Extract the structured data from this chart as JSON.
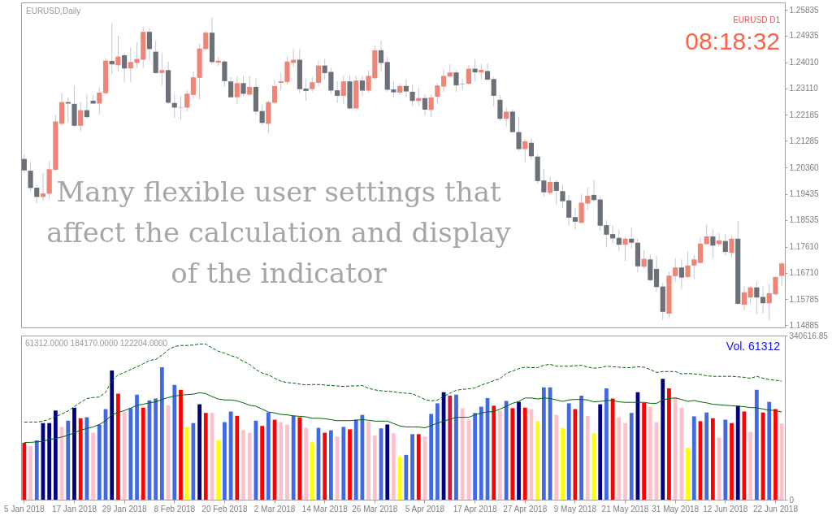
{
  "chart_data": [
    {
      "type": "candlestick",
      "title": "EURUSD,Daily",
      "annotations": [
        "EURUSD D1",
        "08:18:32",
        "Many flexible user settings that affect the calculation and display of the indicator"
      ],
      "categories": [
        null,
        null,
        null,
        null,
        null,
        null,
        null,
        null,
        null,
        null,
        null,
        null,
        null,
        null,
        null,
        null,
        null,
        null,
        null,
        null,
        null,
        null,
        null,
        null,
        null,
        null,
        null,
        null,
        null,
        null,
        null,
        null,
        null,
        null,
        null,
        null,
        null,
        null,
        null,
        null,
        null,
        null,
        null,
        null,
        null,
        null,
        null,
        null,
        null,
        null,
        null,
        null,
        null,
        null,
        null,
        null,
        null,
        null,
        null,
        null,
        null,
        null,
        null,
        null,
        null,
        null,
        null,
        null,
        null,
        null,
        null,
        null,
        null,
        null,
        null,
        null,
        null,
        null,
        null,
        null,
        null,
        null,
        null,
        null,
        null,
        null,
        null,
        null,
        null,
        null,
        null,
        null,
        null,
        null,
        null,
        null,
        null,
        null,
        null,
        null,
        null,
        null,
        null,
        null,
        null,
        null,
        null,
        null,
        null,
        null,
        null,
        null,
        null,
        null,
        null,
        null,
        null,
        null,
        null,
        null,
        null,
        null
      ],
      "ohlc": [
        [
          1.2066,
          1.2082,
          1.2017,
          1.2026
        ],
        [
          1.2025,
          1.2052,
          1.1954,
          1.1965
        ],
        [
          1.1966,
          1.1976,
          1.1911,
          1.1934
        ],
        [
          1.1934,
          1.2017,
          1.192,
          1.1946
        ],
        [
          1.1945,
          1.2059,
          1.1927,
          1.203
        ],
        [
          1.2028,
          1.2219,
          1.2026,
          1.2196
        ],
        [
          1.2188,
          1.2296,
          1.2183,
          1.2263
        ],
        [
          1.2263,
          1.228,
          1.2191,
          1.2258
        ],
        [
          1.2257,
          1.232,
          1.2176,
          1.2181
        ],
        [
          1.2181,
          1.2263,
          1.2162,
          1.2235
        ],
        [
          1.2235,
          1.2292,
          1.2207,
          1.2211
        ],
        [
          1.2268,
          1.2287,
          1.2256,
          1.2258
        ],
        [
          1.2258,
          1.2313,
          1.222,
          1.2296
        ],
        [
          1.2294,
          1.2416,
          1.229,
          1.2407
        ],
        [
          1.2406,
          1.2537,
          1.2361,
          1.2394
        ],
        [
          1.2391,
          1.2493,
          1.2368,
          1.2421
        ],
        [
          1.2426,
          1.2433,
          1.2333,
          1.238
        ],
        [
          1.238,
          1.2453,
          1.2333,
          1.2402
        ],
        [
          1.2399,
          1.2472,
          1.2382,
          1.2413
        ],
        [
          1.241,
          1.2524,
          1.2382,
          1.2507
        ],
        [
          1.2507,
          1.2518,
          1.2407,
          1.2447
        ],
        [
          1.2438,
          1.2475,
          1.2361,
          1.2364
        ],
        [
          1.2364,
          1.2435,
          1.2322,
          1.2374
        ],
        [
          1.2374,
          1.2403,
          1.2257,
          1.2261
        ],
        [
          1.226,
          1.2292,
          1.2208,
          1.2244
        ],
        [
          1.2244,
          1.2285,
          1.2202,
          1.2246
        ],
        [
          1.2244,
          1.2304,
          1.223,
          1.2292
        ],
        [
          1.2288,
          1.237,
          1.2276,
          1.2349
        ],
        [
          1.2347,
          1.2465,
          1.2271,
          1.2449
        ],
        [
          1.2447,
          1.2509,
          1.2442,
          1.2504
        ],
        [
          1.2504,
          1.2557,
          1.2394,
          1.2402
        ],
        [
          1.24,
          1.2419,
          1.2389,
          1.2407
        ],
        [
          1.2404,
          1.2407,
          1.2316,
          1.2336
        ],
        [
          1.2335,
          1.235,
          1.2278,
          1.228
        ],
        [
          1.228,
          1.2352,
          1.2257,
          1.2329
        ],
        [
          1.2329,
          1.2354,
          1.2283,
          1.2292
        ],
        [
          1.2289,
          1.2354,
          1.2285,
          1.2316
        ],
        [
          1.2316,
          1.2345,
          1.2219,
          1.223
        ],
        [
          1.2232,
          1.2254,
          1.2183,
          1.2191
        ],
        [
          1.2188,
          1.2268,
          1.2154,
          1.2263
        ],
        [
          1.2261,
          1.2341,
          1.2257,
          1.2319
        ],
        [
          1.233,
          1.2364,
          1.2304,
          1.2335
        ],
        [
          1.2333,
          1.2422,
          1.2324,
          1.2404
        ],
        [
          1.2399,
          1.2447,
          1.2384,
          1.241
        ],
        [
          1.241,
          1.2447,
          1.2294,
          1.2308
        ],
        [
          1.231,
          1.2345,
          1.2268,
          1.2302
        ],
        [
          1.2308,
          1.235,
          1.2299,
          1.2332
        ],
        [
          1.233,
          1.2407,
          1.2318,
          1.239
        ],
        [
          1.239,
          1.2413,
          1.2341,
          1.2364
        ],
        [
          1.2368,
          1.2382,
          1.2292,
          1.2303
        ],
        [
          1.2304,
          1.2336,
          1.2259,
          1.2285
        ],
        [
          1.2285,
          1.2356,
          1.2257,
          1.2335
        ],
        [
          1.2335,
          1.2356,
          1.2236,
          1.2241
        ],
        [
          1.2241,
          1.2354,
          1.2239,
          1.2338
        ],
        [
          1.2338,
          1.2354,
          1.2283,
          1.2303
        ],
        [
          1.2303,
          1.2373,
          1.2296,
          1.2354
        ],
        [
          1.2346,
          1.246,
          1.2341,
          1.2443
        ],
        [
          1.2443,
          1.2476,
          1.237,
          1.2399
        ],
        [
          1.2402,
          1.242,
          1.2299,
          1.2306
        ],
        [
          1.2307,
          1.2335,
          1.228,
          1.2297
        ],
        [
          1.2296,
          1.2328,
          1.2288,
          1.2319
        ],
        [
          1.2319,
          1.2343,
          1.2278,
          1.23
        ],
        [
          1.2299,
          1.2324,
          1.225,
          1.2267
        ],
        [
          1.2267,
          1.2313,
          1.2248,
          1.2277
        ],
        [
          1.2277,
          1.229,
          1.2216,
          1.2237
        ],
        [
          1.2236,
          1.229,
          1.2211,
          1.2279
        ],
        [
          1.2282,
          1.2329,
          1.2259,
          1.2321
        ],
        [
          1.2317,
          1.2375,
          1.2299,
          1.2354
        ],
        [
          1.2352,
          1.2395,
          1.235,
          1.2366
        ],
        [
          1.2366,
          1.2375,
          1.2299,
          1.2321
        ],
        [
          1.2325,
          1.2344,
          1.2306,
          1.2327
        ],
        [
          1.2327,
          1.2392,
          1.2324,
          1.2379
        ],
        [
          1.2379,
          1.2413,
          1.2336,
          1.2366
        ],
        [
          1.2366,
          1.2395,
          1.2341,
          1.2375
        ],
        [
          1.2371,
          1.2397,
          1.2339,
          1.2341
        ],
        [
          1.2343,
          1.235,
          1.2248,
          1.2285
        ],
        [
          1.2271,
          1.2287,
          1.2198,
          1.2205
        ],
        [
          1.2205,
          1.2244,
          1.2179,
          1.223
        ],
        [
          1.223,
          1.2237,
          1.2156,
          1.2159
        ],
        [
          1.2159,
          1.2211,
          1.2093,
          1.21
        ],
        [
          1.21,
          1.2133,
          1.2054,
          1.2127
        ],
        [
          1.2122,
          1.2137,
          1.2063,
          1.2075
        ],
        [
          1.2074,
          1.2082,
          1.198,
          1.1989
        ],
        [
          1.1991,
          1.203,
          1.1934,
          1.195
        ],
        [
          1.1948,
          1.2004,
          1.1943,
          1.1986
        ],
        [
          1.1986,
          1.1992,
          1.1908,
          1.1955
        ],
        [
          1.1954,
          1.1977,
          1.1894,
          1.1919
        ],
        [
          1.1922,
          1.194,
          1.1834,
          1.1862
        ],
        [
          1.1864,
          1.1897,
          1.1821,
          1.1848
        ],
        [
          1.1844,
          1.1943,
          1.1841,
          1.1914
        ],
        [
          1.1911,
          1.1966,
          1.1888,
          1.1938
        ],
        [
          1.1941,
          1.1994,
          1.1918,
          1.1923
        ],
        [
          1.1925,
          1.1936,
          1.1816,
          1.1834
        ],
        [
          1.1836,
          1.1853,
          1.1758,
          1.1803
        ],
        [
          1.1805,
          1.1835,
          1.1772,
          1.179
        ],
        [
          1.1792,
          1.1821,
          1.1745,
          1.1768
        ],
        [
          1.1768,
          1.1795,
          1.1712,
          1.1789
        ],
        [
          1.1789,
          1.1828,
          1.1754,
          1.1775
        ],
        [
          1.1775,
          1.1789,
          1.1673,
          1.1693
        ],
        [
          1.1692,
          1.1749,
          1.1686,
          1.1719
        ],
        [
          1.1717,
          1.1733,
          1.164,
          1.1645
        ],
        [
          1.1684,
          1.1728,
          1.1604,
          1.1621
        ],
        [
          1.1623,
          1.1636,
          1.1506,
          1.1535
        ],
        [
          1.1529,
          1.1675,
          1.1515,
          1.1661
        ],
        [
          1.1659,
          1.1721,
          1.1638,
          1.1689
        ],
        [
          1.1689,
          1.1717,
          1.1615,
          1.1654
        ],
        [
          1.1656,
          1.1745,
          1.1652,
          1.1696
        ],
        [
          1.1696,
          1.1733,
          1.1647,
          1.1717
        ],
        [
          1.1705,
          1.1793,
          1.1703,
          1.1772
        ],
        [
          1.177,
          1.184,
          1.1768,
          1.1797
        ],
        [
          1.1797,
          1.1821,
          1.1723,
          1.1765
        ],
        [
          1.177,
          1.1808,
          1.1763,
          1.1783
        ],
        [
          1.1781,
          1.1807,
          1.1729,
          1.1743
        ],
        [
          1.174,
          1.1798,
          1.1723,
          1.1789
        ],
        [
          1.1789,
          1.1851,
          1.156,
          1.1563
        ],
        [
          1.156,
          1.1624,
          1.154,
          1.1603
        ],
        [
          1.1585,
          1.1624,
          1.1563,
          1.162
        ],
        [
          1.162,
          1.1641,
          1.1527,
          1.1585
        ],
        [
          1.1587,
          1.1623,
          1.1529,
          1.1565
        ],
        [
          1.1565,
          1.1632,
          1.1504,
          1.16
        ],
        [
          1.1596,
          1.1657,
          1.1592,
          1.1656
        ],
        [
          1.166,
          1.171,
          1.1626,
          1.1703
        ]
      ],
      "colors": [
        "#6b7079",
        "#6b7079",
        "#6b7079",
        "#ef8576",
        "#ef8576",
        "#ef8576",
        "#ef8576",
        "#6b7079",
        "#6b7079",
        "#ef8576",
        "#6b7079",
        "#6b7079",
        "#ef8576",
        "#ef8576",
        "#6b7079",
        "#ef8576",
        "#6b7079",
        "#ef8576",
        "#ef8576",
        "#ef8576",
        "#6b7079",
        "#6b7079",
        "#ef8576",
        "#6b7079",
        "#6b7079",
        "#ef8576",
        "#ef8576",
        "#ef8576",
        "#ef8576",
        "#ef8576",
        "#6b7079",
        "#ef8576",
        "#6b7079",
        "#6b7079",
        "#ef8576",
        "#6b7079",
        "#ef8576",
        "#6b7079",
        "#6b7079",
        "#ef8576",
        "#ef8576",
        "#ef8576",
        "#ef8576",
        "#ef8576",
        "#6b7079",
        "#6b7079",
        "#ef8576",
        "#ef8576",
        "#6b7079",
        "#6b7079",
        "#6b7079",
        "#ef8576",
        "#6b7079",
        "#ef8576",
        "#6b7079",
        "#ef8576",
        "#ef8576",
        "#6b7079",
        "#6b7079",
        "#6b7079",
        "#ef8576",
        "#6b7079",
        "#6b7079",
        "#ef8576",
        "#6b7079",
        "#ef8576",
        "#ef8576",
        "#ef8576",
        "#ef8576",
        "#6b7079",
        "#ef8576",
        "#ef8576",
        "#6b7079",
        "#ef8576",
        "#6b7079",
        "#6b7079",
        "#6b7079",
        "#ef8576",
        "#6b7079",
        "#6b7079",
        "#ef8576",
        "#6b7079",
        "#6b7079",
        "#6b7079",
        "#ef8576",
        "#6b7079",
        "#6b7079",
        "#6b7079",
        "#6b7079",
        "#ef8576",
        "#ef8576",
        "#6b7079",
        "#6b7079",
        "#6b7079",
        "#6b7079",
        "#6b7079",
        "#ef8576",
        "#6b7079",
        "#6b7079",
        "#ef8576",
        "#6b7079",
        "#6b7079",
        "#6b7079",
        "#ef8576",
        "#ef8576",
        "#6b7079",
        "#ef8576",
        "#ef8576",
        "#ef8576",
        "#ef8576",
        "#6b7079",
        "#ef8576",
        "#6b7079",
        "#ef8576",
        "#6b7079",
        "#ef8576",
        "#ef8576",
        "#6b7079",
        "#6b7079",
        "#ef8576",
        "#ef8576",
        "#ef8576"
      ],
      "ylim": [
        1.1481,
        1.2609
      ],
      "yticks": [
        1.14885,
        1.15785,
        {
          "value": 1.1671,
          "label": "1.16710"
        },
        {
          "value": 1.1761,
          "label": "1.17610"
        },
        1.18535,
        1.19435,
        {
          "value": 1.2036,
          "label": "1.20360"
        },
        1.21285,
        1.22185,
        {
          "value": 1.2311,
          "label": "1.23110"
        },
        {
          "value": 1.2401,
          "label": "1.24010"
        },
        1.24935,
        1.25835
      ],
      "tick_labels": "y"
    },
    {
      "type": "bar",
      "title": "61312.0000 184170.0000 122204.0000",
      "annotations": [
        "Vol. 61312"
      ],
      "categories": [
        "5 Jan 2018",
        null,
        null,
        null,
        null,
        null,
        null,
        null,
        "17 Jan 2018",
        null,
        null,
        null,
        null,
        null,
        null,
        null,
        "29 Jan 2018",
        null,
        null,
        null,
        null,
        null,
        null,
        null,
        "8 Feb 2018",
        null,
        null,
        null,
        null,
        null,
        null,
        null,
        "20 Feb 2018",
        null,
        null,
        null,
        null,
        null,
        null,
        null,
        "2 Mar 2018",
        null,
        null,
        null,
        null,
        null,
        null,
        null,
        "14 Mar 2018",
        null,
        null,
        null,
        null,
        null,
        null,
        null,
        "26 Mar 2018",
        null,
        null,
        null,
        null,
        null,
        null,
        null,
        "5 Apr 2018",
        null,
        null,
        null,
        null,
        null,
        null,
        null,
        "17 Apr 2018",
        null,
        null,
        null,
        null,
        null,
        null,
        null,
        "27 Apr 2018",
        null,
        null,
        null,
        null,
        null,
        null,
        null,
        "9 May 2018",
        null,
        null,
        null,
        null,
        null,
        null,
        null,
        "21 May 2018",
        null,
        null,
        null,
        null,
        null,
        null,
        null,
        "31 May 2018",
        null,
        null,
        null,
        null,
        null,
        null,
        null,
        "12 Jun 2018",
        null,
        null,
        null,
        null,
        null,
        null,
        null,
        "22 Jun 2018",
        null
      ],
      "series": [
        {
          "type": "bar",
          "values": [
            118000,
            111000,
            123000,
            159000,
            159000,
            185000,
            151000,
            164000,
            191000,
            169000,
            171000,
            139000,
            156000,
            188000,
            268000,
            220000,
            183000,
            190000,
            218000,
            191000,
            206000,
            210000,
            275000,
            196000,
            238000,
            228000,
            151000,
            159000,
            198000,
            180000,
            180000,
            123000,
            161000,
            183000,
            174000,
            144000,
            139000,
            164000,
            153000,
            181000,
            166000,
            161000,
            156000,
            174000,
            171000,
            149000,
            119000,
            149000,
            139000,
            144000,
            131000,
            151000,
            146000,
            166000,
            176000,
            163000,
            133000,
            148000,
            156000,
            138000,
            89000,
            93000,
            136000,
            136000,
            131000,
            178000,
            200000,
            223000,
            216000,
            218000,
            190000,
            166000,
            180000,
            193000,
            211000,
            195000,
            185000,
            205000,
            190000,
            203000,
            191000,
            188000,
            163000,
            233000,
            233000,
            176000,
            149000,
            200000,
            188000,
            216000,
            174000,
            138000,
            198000,
            231000,
            210000,
            171000,
            159000,
            180000,
            223000,
            201000,
            193000,
            161000,
            251000,
            231000,
            213000,
            191000,
            108000,
            173000,
            163000,
            181000,
            169000,
            129000,
            166000,
            159000,
            195000,
            183000,
            141000,
            228000,
            181000,
            203000,
            188000,
            158000
          ],
          "colors": [
            "#ff0000",
            "#ffc0cb",
            "#4169e1",
            "#000080",
            "#000080",
            "#000080",
            "#ffc0cb",
            "#4169e1",
            "#000080",
            "#ff0000",
            "#4169e1",
            "#ffc0cb",
            "#4169e1",
            "#4169e1",
            "#000080",
            "#ff0000",
            "#ffc0cb",
            "#4169e1",
            "#4169e1",
            "#ff0000",
            "#4169e1",
            "#4169e1",
            "#4169e1",
            "#ffc0cb",
            "#4169e1",
            "#ff0000",
            "#ffff00",
            "#4169e1",
            "#000080",
            "#ff0000",
            "#ffc0cb",
            "#ffff00",
            "#4169e1",
            "#4169e1",
            "#ff0000",
            "#ffc0cb",
            "#ffc0cb",
            "#4169e1",
            "#ff0000",
            "#4169e1",
            "#ff0000",
            "#ffc0cb",
            "#ffc0cb",
            "#4169e1",
            "#ff0000",
            "#ffc0cb",
            "#ffff00",
            "#4169e1",
            "#ff0000",
            "#4169e1",
            "#ffc0cb",
            "#4169e1",
            "#ff0000",
            "#4169e1",
            "#4169e1",
            "#ffc0cb",
            "#ffc0cb",
            "#4169e1",
            "#000080",
            "#ffc0cb",
            "#ffff00",
            "#4169e1",
            "#4169e1",
            "#ff0000",
            "#ffc0cb",
            "#4169e1",
            "#4169e1",
            "#000080",
            "#dc143c",
            "#4169e1",
            "#ffc0cb",
            "#ffc0cb",
            "#4169e1",
            "#4169e1",
            "#4169e1",
            "#ff0000",
            "#ffc0cb",
            "#4169e1",
            "#ff0000",
            "#000080",
            "#ff0000",
            "#ffc0cb",
            "#ffff00",
            "#4169e1",
            "#4169e1",
            "#ffc0cb",
            "#ffff00",
            "#4169e1",
            "#ff0000",
            "#4169e1",
            "#ffc0cb",
            "#ffff00",
            "#000080",
            "#4169e1",
            "#ff0000",
            "#ffc0cb",
            "#ffc0cb",
            "#4169e1",
            "#000080",
            "#ff0000",
            "#ffc0cb",
            "#ffc0cb",
            "#000080",
            "#ff0000",
            "#ffc0cb",
            "#ffc0cb",
            "#ffff00",
            "#4169e1",
            "#ff0000",
            "#4169e1",
            "#ff0000",
            "#ffc0cb",
            "#4169e1",
            "#ff0000",
            "#000080",
            "#ff0000",
            "#ffc0cb",
            "#4169e1",
            "#ff0000",
            "#4169e1",
            "#ff0000",
            "#ffc0cb"
          ]
        },
        {
          "type": "line",
          "color": "#006400",
          "values": [
            119000,
            119000,
            120000,
            121000,
            125000,
            127000,
            130000,
            134000,
            139000,
            144000,
            148000,
            151000,
            156000,
            164000,
            176000,
            181000,
            185000,
            190000,
            196000,
            198000,
            201000,
            203000,
            208000,
            212000,
            215000,
            217000,
            218000,
            219000,
            222000,
            220000,
            214000,
            209000,
            207000,
            207000,
            205000,
            201000,
            196000,
            194000,
            188000,
            182000,
            180000,
            177000,
            176000,
            174000,
            173000,
            172000,
            169000,
            169000,
            168000,
            166000,
            164000,
            164000,
            164000,
            165000,
            166000,
            165000,
            163000,
            163000,
            163000,
            158000,
            153000,
            151000,
            151000,
            151000,
            149000,
            154000,
            159000,
            163000,
            167000,
            171000,
            171000,
            171000,
            176000,
            180000,
            182000,
            183000,
            188000,
            194000,
            200000,
            204000,
            211000,
            211000,
            209000,
            211000,
            210000,
            207000,
            204000,
            207000,
            208000,
            208000,
            207000,
            203000,
            204000,
            206000,
            206000,
            203000,
            202000,
            202000,
            202000,
            202000,
            200000,
            200000,
            207000,
            210000,
            211000,
            208000,
            204000,
            206000,
            203000,
            201000,
            198000,
            197000,
            196000,
            195000,
            194000,
            193000,
            191000,
            191000,
            188000,
            186000,
            185000,
            182000
          ]
        },
        {
          "type": "line",
          "color": "#006400",
          "line_style": "dashed",
          "values": [
            161000,
            161000,
            161000,
            163000,
            167000,
            172000,
            178000,
            184000,
            193000,
            202000,
            210000,
            212000,
            213000,
            223000,
            247000,
            259000,
            264000,
            270000,
            276000,
            282000,
            289000,
            291000,
            300000,
            311000,
            318000,
            320000,
            320000,
            321000,
            323000,
            323000,
            315000,
            308000,
            304000,
            299000,
            295000,
            287000,
            281000,
            270000,
            263000,
            259000,
            252000,
            246000,
            243000,
            242000,
            240000,
            238000,
            239000,
            239000,
            238000,
            237000,
            236000,
            235000,
            236000,
            236000,
            237000,
            231000,
            228000,
            226000,
            225000,
            224000,
            222000,
            221000,
            220000,
            214000,
            208000,
            205000,
            207000,
            214000,
            221000,
            227000,
            229000,
            230000,
            232000,
            238000,
            242000,
            247000,
            251000,
            262000,
            267000,
            272000,
            275000,
            274000,
            274000,
            279000,
            281000,
            277000,
            277000,
            277000,
            278000,
            279000,
            275000,
            273000,
            274000,
            277000,
            276000,
            275000,
            274000,
            274000,
            276000,
            275000,
            270000,
            264000,
            266000,
            266000,
            266000,
            261000,
            262000,
            261000,
            260000,
            257000,
            256000,
            256000,
            256000,
            256000,
            255000,
            254000,
            252000,
            256000,
            252000,
            249000,
            248000,
            246000
          ]
        }
      ],
      "ylim": [
        0,
        340616.85
      ],
      "yticks": [
        0,
        340616.85
      ]
    }
  ]
}
